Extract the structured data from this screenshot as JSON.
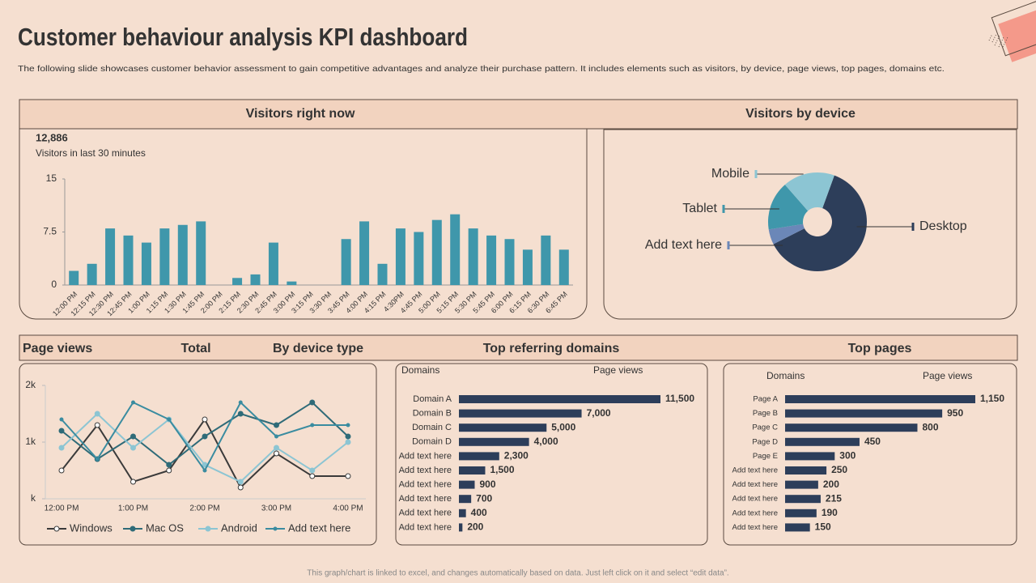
{
  "title": "Customer behaviour analysis KPI dashboard",
  "subtitle": "The following slide showcases customer behavior assessment to gain competitive advantages and analyze their purchase pattern. It includes elements such as visitors, by device, page views, top pages, domains etc.",
  "footer": "This graph/chart is linked to excel, and changes automatically based on data. Just left click on it and select “edit data”.",
  "chart_data": [
    {
      "type": "bar",
      "title": "Visitors right now",
      "stat": "12,886",
      "stat_label": "Visitors in last 30 minutes",
      "categories": [
        "12:00 PM",
        "12:15 PM",
        "12:30 PM",
        "12:45 PM",
        "1:00 PM",
        "1:15 PM",
        "1:30 PM",
        "1:45 PM",
        "2:00 PM",
        "2:15 PM",
        "2:30 PM",
        "2:45 PM",
        "3:00 PM",
        "3:15 PM",
        "3:30 PM",
        "3:45 PM",
        "4:00 PM",
        "4:15 PM",
        "4:30PM",
        "4:45 PM",
        "5:00 PM",
        "5:15 PM",
        "5:30 PM",
        "5:45 PM",
        "6:00 PM",
        "6:15 PM",
        "6:30 PM",
        "6:45 PM"
      ],
      "values": [
        2,
        3,
        8,
        7,
        6,
        8,
        8.5,
        9,
        0,
        1,
        1.5,
        6,
        0.5,
        0,
        0,
        6.5,
        9,
        3,
        8,
        7.5,
        9.2,
        10,
        8,
        7,
        6.5,
        5,
        7,
        5
      ],
      "color": "#3f97ab",
      "ylim": [
        0,
        15
      ],
      "yticks": [
        0,
        7.5,
        15
      ]
    },
    {
      "type": "pie",
      "title": "Visitors by device",
      "donut": true,
      "categories": [
        "Desktop",
        "Add text here",
        "Tablet",
        "Mobile"
      ],
      "values": [
        62,
        5,
        16,
        17
      ],
      "colors": [
        "#2d3e5a",
        "#6b87b8",
        "#3f97ab",
        "#8cc5d3"
      ]
    },
    {
      "type": "line",
      "title": "Page views",
      "headers": [
        "Total",
        "By device type"
      ],
      "categories": [
        "12:00 PM",
        null,
        "1:00 PM",
        null,
        "2:00 PM",
        null,
        "3:00 PM",
        null,
        "4:00 PM"
      ],
      "ylim": [
        0,
        2000
      ],
      "yticks": [
        {
          "value": 0,
          "label": "k"
        },
        {
          "value": 1000,
          "label": "1k"
        },
        {
          "value": 2000,
          "label": "2k"
        }
      ],
      "series": [
        {
          "name": "Windows",
          "color": "#3a3a3a",
          "values": [
            500,
            1300,
            300,
            500,
            1400,
            200,
            800,
            400,
            400
          ]
        },
        {
          "name": "Mac OS",
          "color": "#2f6b78",
          "values": [
            1200,
            700,
            1100,
            600,
            1100,
            1500,
            1300,
            1700,
            1100
          ]
        },
        {
          "name": "Android",
          "color": "#8cc5d3",
          "values": [
            900,
            1500,
            900,
            1400,
            600,
            300,
            900,
            500,
            1000
          ]
        },
        {
          "name": "Add text here",
          "color": "#3a8ca0",
          "values": [
            1400,
            700,
            1700,
            1400,
            500,
            1700,
            1100,
            1300,
            1300
          ]
        }
      ]
    },
    {
      "type": "hbar",
      "title": "Top referring domains",
      "headers": [
        "Domains",
        "Page views"
      ],
      "categories": [
        "Domain A",
        "Domain B",
        "Domain C",
        "Domain D",
        "Add text here",
        "Add text here",
        "Add text here",
        "Add text here",
        "Add text here",
        "Add text here"
      ],
      "values": [
        11500,
        7000,
        5000,
        4000,
        2300,
        1500,
        900,
        700,
        400,
        200
      ],
      "value_labels": [
        "11,500",
        "7,000",
        "5,000",
        "4,000",
        "2,300",
        "1,500",
        "900",
        "700",
        "400",
        "200"
      ],
      "color": "#2d3e5a"
    },
    {
      "type": "hbar",
      "title": "Top pages",
      "headers": [
        "Domains",
        "Page views"
      ],
      "categories": [
        "Page A",
        "Page B",
        "Page C",
        "Page D",
        "Page E",
        "Add text here",
        "Add text here",
        "Add text here",
        "Add text here",
        "Add text here"
      ],
      "values": [
        1150,
        950,
        800,
        450,
        300,
        250,
        200,
        215,
        190,
        150
      ],
      "value_labels": [
        "1,150",
        "950",
        "800",
        "450",
        "300",
        "250",
        "200",
        "215",
        "190",
        "150"
      ],
      "color": "#2d3e5a"
    }
  ]
}
